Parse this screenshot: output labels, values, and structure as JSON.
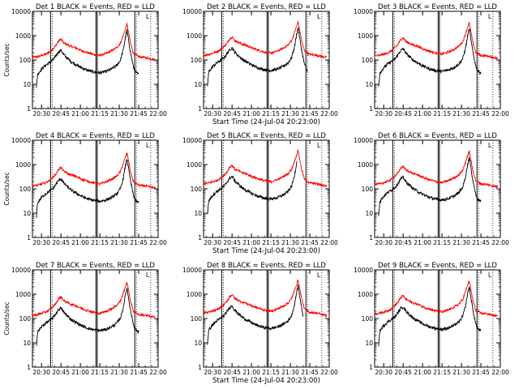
{
  "chart_data": {
    "type": "line",
    "y_scale": "log",
    "ylim": [
      1,
      10000
    ],
    "xlim": [
      "20:23",
      "22:00"
    ],
    "yticks": [
      "1",
      "10",
      "100",
      "1000",
      "10000"
    ],
    "xticks": [
      "20:30",
      "20:45",
      "21:00",
      "21:15",
      "21:30",
      "21:45",
      "22:00"
    ],
    "ylabel": "Counts/sec",
    "xlabel": "Start Time (24-Jul-04 20:23:00)",
    "series_colors": {
      "events": "#000000",
      "lld": "#ff0000"
    },
    "markers": {
      "solid_vertical_lines": [
        "20:37",
        "21:12",
        "21:13",
        "21:42"
      ],
      "dotted_vertical_lines": [
        "20:37",
        "21:42",
        "21:53"
      ],
      "corner_mark_label": "L"
    },
    "panels": [
      {
        "title": "Det 1 BLACK = Events, RED = LLD",
        "events_end": "21:45"
      },
      {
        "title": "Det 2 BLACK = Events, RED = LLD",
        "events_end": "21:43"
      },
      {
        "title": "Det 3 BLACK = Events, RED = LLD",
        "events_end": "21:45"
      },
      {
        "title": "Det 4 BLACK = Events, RED = LLD",
        "events_end": "21:45"
      },
      {
        "title": "Det 5 BLACK = Events, RED = LLD",
        "events_end": "21:35"
      },
      {
        "title": "Det 6 BLACK = Events, RED = LLD",
        "events_end": "21:45"
      },
      {
        "title": "Det 7 BLACK = Events, RED = LLD",
        "events_end": "21:45"
      },
      {
        "title": "Det 8 BLACK = Events, RED = LLD",
        "events_end": "21:40"
      },
      {
        "title": "Det 9 BLACK = Events, RED = LLD",
        "events_end": "21:45"
      }
    ],
    "events_profile": [
      [
        "20:26",
        8
      ],
      [
        "20:27",
        30
      ],
      [
        "20:30",
        50
      ],
      [
        "20:33",
        70
      ],
      [
        "20:36",
        90
      ],
      [
        "20:39",
        120
      ],
      [
        "20:41",
        170
      ],
      [
        "20:43",
        250
      ],
      [
        "20:45",
        300
      ],
      [
        "20:47",
        200
      ],
      [
        "20:50",
        140
      ],
      [
        "20:53",
        100
      ],
      [
        "20:56",
        80
      ],
      [
        "21:00",
        60
      ],
      [
        "21:05",
        45
      ],
      [
        "21:10",
        38
      ],
      [
        "21:15",
        35
      ],
      [
        "21:20",
        40
      ],
      [
        "21:24",
        50
      ],
      [
        "21:28",
        70
      ],
      [
        "21:31",
        120
      ],
      [
        "21:33",
        300
      ],
      [
        "21:35",
        1200
      ],
      [
        "21:36",
        2000
      ],
      [
        "21:37",
        900
      ],
      [
        "21:39",
        200
      ],
      [
        "21:41",
        60
      ],
      [
        "21:43",
        35
      ],
      [
        "21:45",
        30
      ]
    ],
    "lld_profile": [
      [
        "20:23",
        150
      ],
      [
        "20:27",
        160
      ],
      [
        "20:30",
        180
      ],
      [
        "20:33",
        200
      ],
      [
        "20:36",
        250
      ],
      [
        "20:39",
        350
      ],
      [
        "20:41",
        450
      ],
      [
        "20:43",
        700
      ],
      [
        "20:45",
        850
      ],
      [
        "20:47",
        600
      ],
      [
        "20:50",
        500
      ],
      [
        "20:53",
        420
      ],
      [
        "20:56",
        380
      ],
      [
        "21:00",
        300
      ],
      [
        "21:05",
        240
      ],
      [
        "21:10",
        200
      ],
      [
        "21:15",
        180
      ],
      [
        "21:20",
        220
      ],
      [
        "21:24",
        280
      ],
      [
        "21:28",
        380
      ],
      [
        "21:31",
        600
      ],
      [
        "21:33",
        1200
      ],
      [
        "21:35",
        2500
      ],
      [
        "21:36",
        3500
      ],
      [
        "21:37",
        1800
      ],
      [
        "21:39",
        500
      ],
      [
        "21:41",
        220
      ],
      [
        "21:45",
        160
      ],
      [
        "21:50",
        150
      ],
      [
        "21:55",
        130
      ],
      [
        "21:58",
        120
      ]
    ]
  }
}
